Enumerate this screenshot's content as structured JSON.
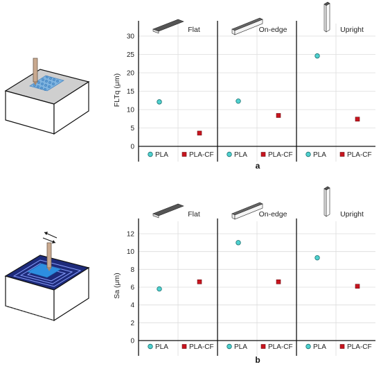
{
  "chart_data": [
    {
      "type": "scatter",
      "panel_label": "a",
      "ylabel": "FLTq (μm)",
      "ylim": [
        0,
        30
      ],
      "yticks": [
        0,
        5,
        10,
        15,
        20,
        25,
        30
      ],
      "grid": true,
      "orientations": [
        "Flat",
        "On-edge",
        "Upright"
      ],
      "legend": [
        "PLA",
        "PLA-CF"
      ],
      "series": [
        {
          "name": "PLA",
          "marker": "circle",
          "color": "#4fd1cf",
          "values": [
            12.1,
            12.3,
            24.6
          ]
        },
        {
          "name": "PLA-CF",
          "marker": "square",
          "color": "#c8141e",
          "values": [
            3.6,
            8.4,
            7.4
          ]
        }
      ]
    },
    {
      "type": "scatter",
      "panel_label": "b",
      "ylabel": "Sa (μm)",
      "ylim": [
        0,
        12
      ],
      "yticks": [
        0,
        2,
        4,
        6,
        8,
        10,
        12
      ],
      "grid": true,
      "orientations": [
        "Flat",
        "On-edge",
        "Upright"
      ],
      "legend": [
        "PLA",
        "PLA-CF"
      ],
      "series": [
        {
          "name": "PLA",
          "marker": "circle",
          "color": "#4fd1cf",
          "values": [
            5.8,
            11.0,
            9.3
          ]
        },
        {
          "name": "PLA-CF",
          "marker": "square",
          "color": "#c8141e",
          "values": [
            6.6,
            6.6,
            6.1
          ]
        }
      ]
    }
  ]
}
